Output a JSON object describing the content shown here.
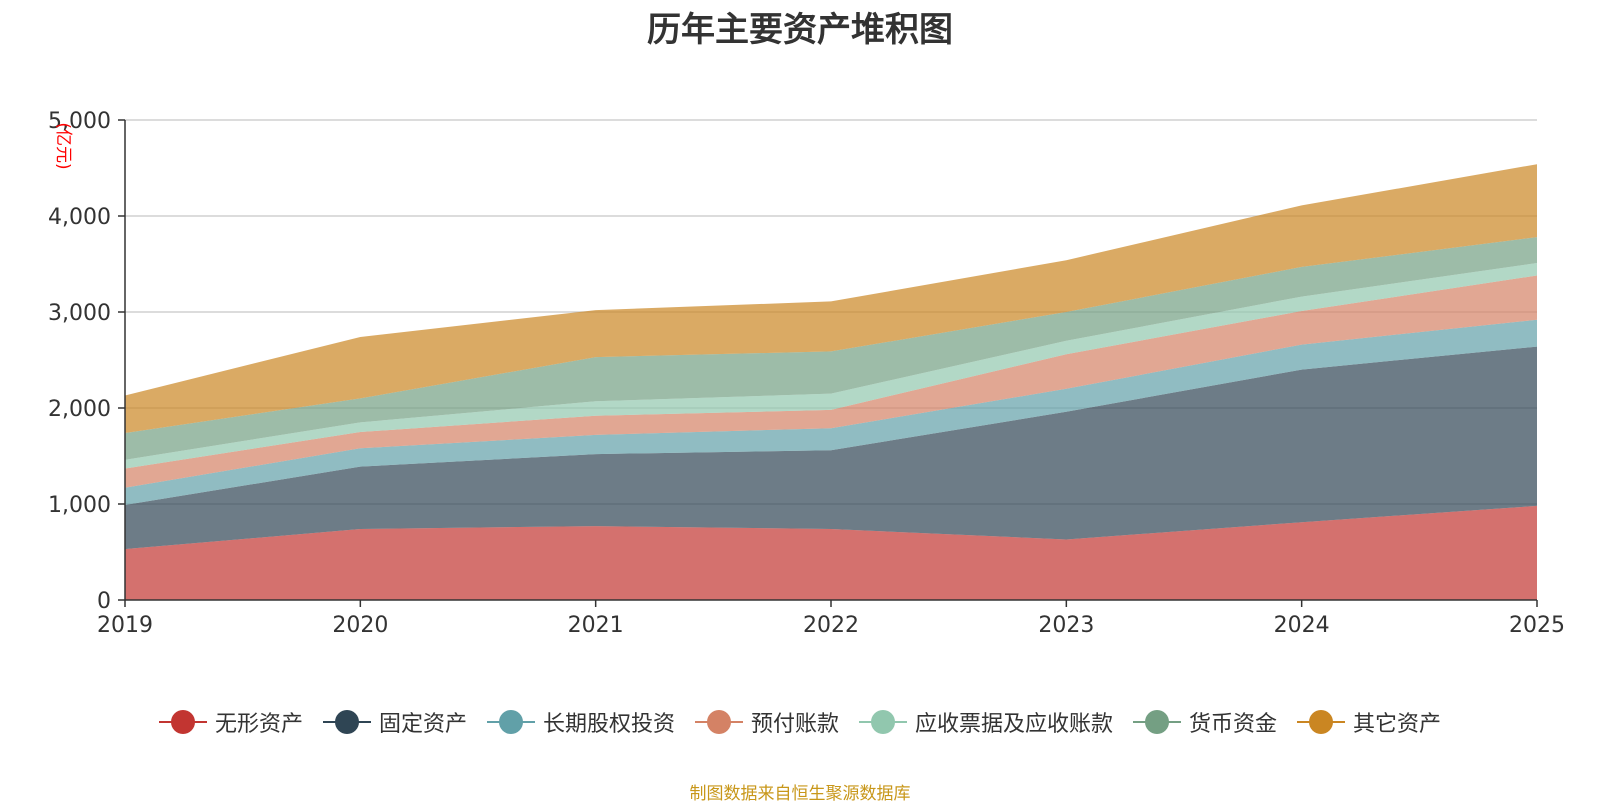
{
  "chart_data": {
    "type": "area",
    "stacked": true,
    "title": "历年主要资产堆积图",
    "ylabel": "(亿元)",
    "xlabel": "",
    "categories": [
      "2019",
      "2020",
      "2021",
      "2022",
      "2023",
      "2024",
      "2025"
    ],
    "ylim": [
      0,
      5000
    ],
    "yticks": [
      0,
      1000,
      2000,
      3000,
      4000,
      5000
    ],
    "ytick_labels": [
      "0",
      "1,000",
      "2,000",
      "3,000",
      "4,000",
      "5,000"
    ],
    "grid": true,
    "legend_position": "bottom",
    "series": [
      {
        "name": "无形资产",
        "color": "#c23531",
        "values": [
          530,
          740,
          770,
          740,
          630,
          810,
          980
        ]
      },
      {
        "name": "固定资产",
        "color": "#2f4554",
        "values": [
          460,
          650,
          750,
          820,
          1330,
          1590,
          1660
        ]
      },
      {
        "name": "长期股权投资",
        "color": "#61a0a8",
        "values": [
          180,
          190,
          200,
          230,
          240,
          260,
          280
        ]
      },
      {
        "name": "预付账款",
        "color": "#d48265",
        "values": [
          200,
          170,
          200,
          190,
          360,
          350,
          460
        ]
      },
      {
        "name": "应收票据及应收账款",
        "color": "#91c7ae",
        "values": [
          90,
          100,
          150,
          170,
          140,
          150,
          130
        ]
      },
      {
        "name": "货币资金",
        "color": "#749f83",
        "values": [
          280,
          250,
          460,
          440,
          300,
          310,
          270
        ]
      },
      {
        "name": "其它资产",
        "color": "#ca8622",
        "values": [
          390,
          640,
          490,
          520,
          540,
          640,
          760
        ]
      }
    ],
    "annotation": "制图数据来自恒生聚源数据库"
  }
}
